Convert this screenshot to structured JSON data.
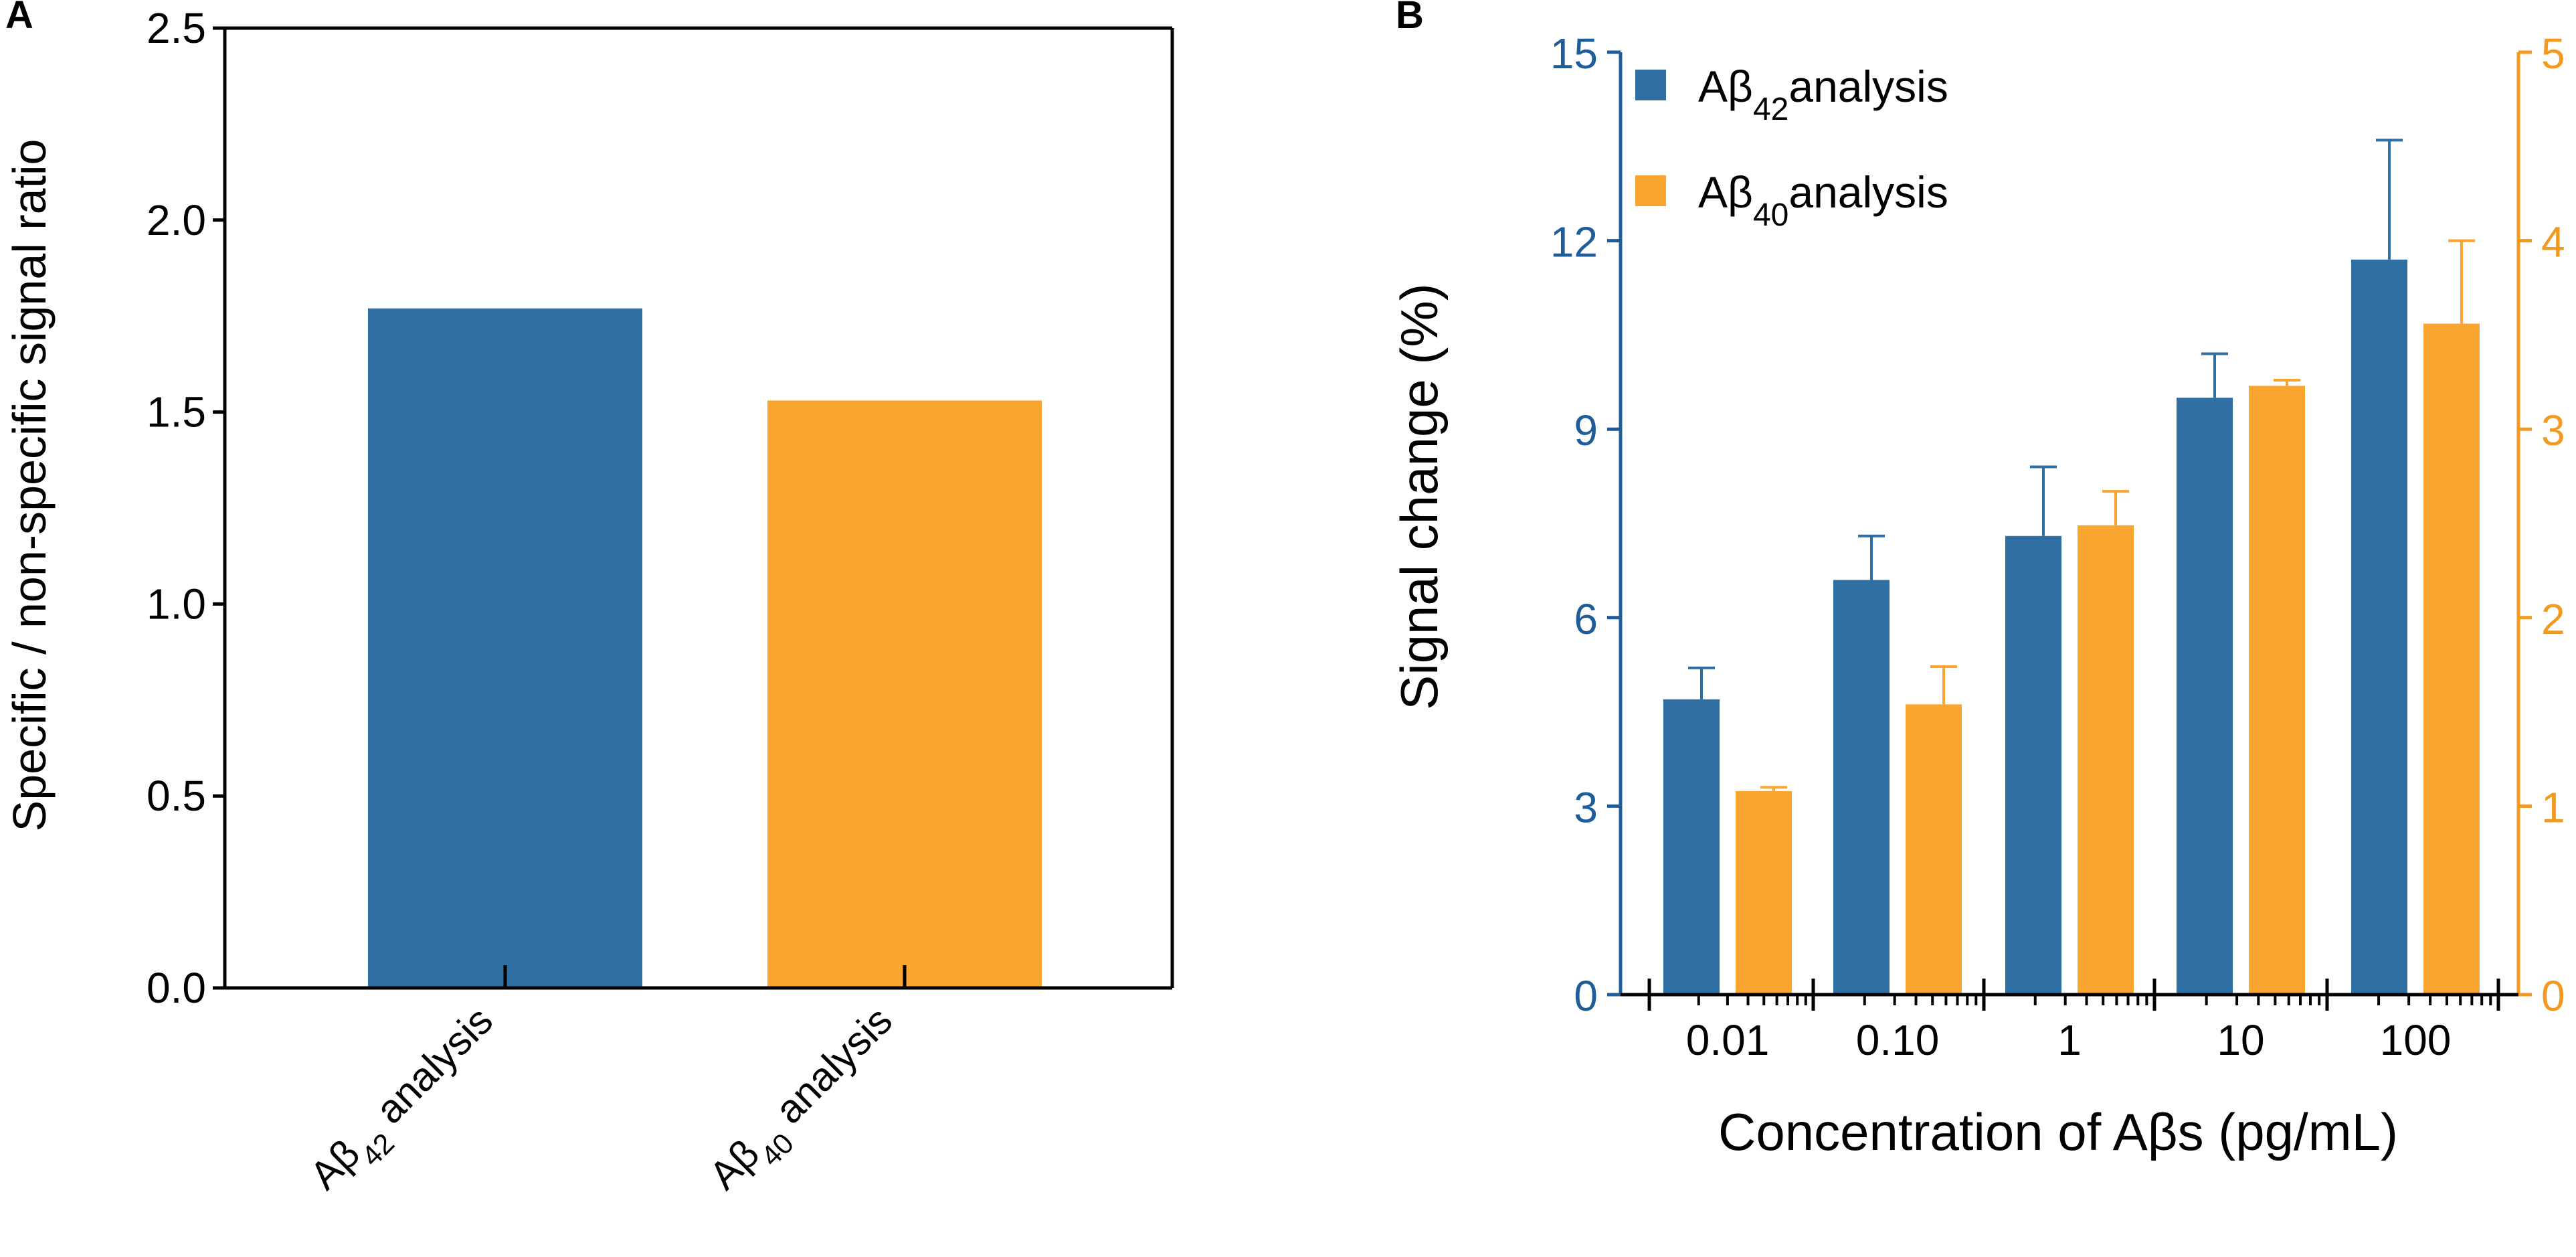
{
  "panel_labels": {
    "a": "A",
    "b": "B"
  },
  "colors": {
    "ab42": "#2f6fa3",
    "ab40": "#f9a52f",
    "axis": "#000000",
    "left_axis_b": "#1f5c9a",
    "right_axis_b": "#f29a1f"
  },
  "chart_data": [
    {
      "panel": "A",
      "type": "bar",
      "title": "",
      "xlabel": "",
      "ylabel": "Specific / non-specific signal ratio",
      "ylim": [
        0,
        2.5
      ],
      "yticks": [
        0.0,
        0.5,
        1.0,
        1.5,
        2.0,
        2.5
      ],
      "ytick_labels": [
        "0.0",
        "0.5",
        "1.0",
        "1.5",
        "2.0",
        "2.5"
      ],
      "categories": [
        {
          "prefix": "Aβ",
          "sub": "42",
          "suffix": " analysis"
        },
        {
          "prefix": "Aβ",
          "sub": "40",
          "suffix": " analysis"
        }
      ],
      "values": [
        1.77,
        1.53
      ],
      "bar_colors": [
        "#2f6fa3",
        "#f9a52f"
      ]
    },
    {
      "panel": "B",
      "type": "bar",
      "title": "",
      "xlabel": "Concentration of Aβs (pg/mL)",
      "ylabel": "Signal change (%)",
      "x_scale": "log",
      "categories": [
        "0.01",
        "0.10",
        "1",
        "10",
        "100"
      ],
      "ylim_left": [
        0,
        15
      ],
      "yticks_left": [
        "0",
        "3",
        "6",
        "9",
        "12",
        "15"
      ],
      "ylim_right": [
        0,
        5
      ],
      "yticks_right": [
        "0",
        "1",
        "2",
        "3",
        "4",
        "5"
      ],
      "legend_position": "top-left",
      "series": [
        {
          "name_prefix": "Aβ",
          "name_sub": "42",
          "name_suffix": "analysis",
          "axis": "left",
          "color": "#2f6fa3",
          "values": [
            4.7,
            6.6,
            7.3,
            9.5,
            11.7
          ],
          "errors": [
            0.5,
            0.7,
            1.1,
            0.7,
            1.9
          ]
        },
        {
          "name_prefix": "Aβ",
          "name_sub": "40",
          "name_suffix": "analysis",
          "axis": "right",
          "color": "#f9a52f",
          "values": [
            1.08,
            1.54,
            2.49,
            3.23,
            3.56
          ],
          "errors": [
            0.02,
            0.2,
            0.18,
            0.03,
            0.44
          ]
        }
      ]
    }
  ]
}
